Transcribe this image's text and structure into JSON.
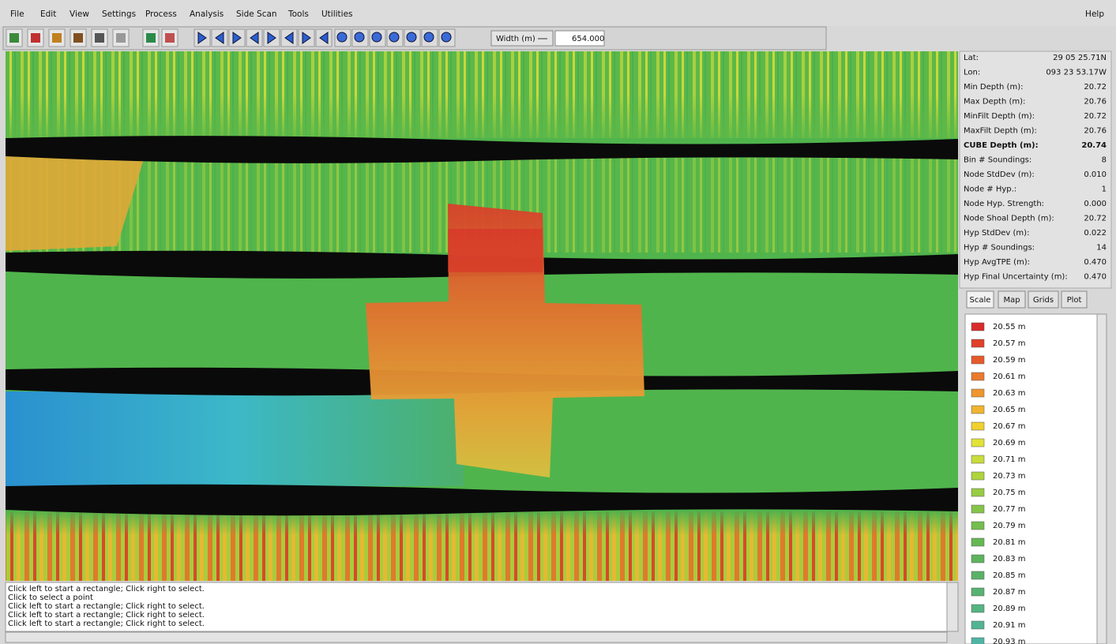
{
  "menu": [
    "File",
    "Edit",
    "View",
    "Settings",
    "Process",
    "Analysis",
    "Side Scan",
    "Tools",
    "Utilities"
  ],
  "help": "Help",
  "toolbar": {
    "width_label": "Width (m)",
    "width_value": "654.000"
  },
  "info": [
    {
      "label": "Lat:",
      "value": "29 05 25.71N"
    },
    {
      "label": "Lon:",
      "value": "093 23 53.17W"
    },
    {
      "label": "Min Depth (m):",
      "value": "20.72"
    },
    {
      "label": "Max Depth (m):",
      "value": "20.76"
    },
    {
      "label": "MinFilt Depth (m):",
      "value": "20.72"
    },
    {
      "label": "MaxFilt Depth (m):",
      "value": "20.76"
    },
    {
      "label": "CUBE Depth (m):",
      "value": "20.74"
    },
    {
      "label": "Bin # Soundings:",
      "value": "8"
    },
    {
      "label": "Node StdDev (m):",
      "value": "0.010"
    },
    {
      "label": "Node # Hyp.:",
      "value": "1"
    },
    {
      "label": "Node Hyp. Strength:",
      "value": "0.000"
    },
    {
      "label": "Node Shoal Depth (m):",
      "value": "20.72"
    },
    {
      "label": "Hyp StdDev (m):",
      "value": "0.022"
    },
    {
      "label": "Hyp # Soundings:",
      "value": "14"
    },
    {
      "label": "Hyp AvgTPE (m):",
      "value": "0.470"
    },
    {
      "label": "Hyp Final Uncertainty (m):",
      "value": "0.470"
    }
  ],
  "tabs": [
    "Scale",
    "Map",
    "Grids",
    "Plot"
  ],
  "legend": [
    {
      "label": "20.55 m",
      "color": "#d92b2b"
    },
    {
      "label": "20.57 m",
      "color": "#e0402a"
    },
    {
      "label": "20.59 m",
      "color": "#e55a2a"
    },
    {
      "label": "20.61 m",
      "color": "#ea7a2d"
    },
    {
      "label": "20.63 m",
      "color": "#ee9630"
    },
    {
      "label": "20.65 m",
      "color": "#f0b430"
    },
    {
      "label": "20.67 m",
      "color": "#efd030"
    },
    {
      "label": "20.69 m",
      "color": "#e2e238"
    },
    {
      "label": "20.71 m",
      "color": "#c8dc3c"
    },
    {
      "label": "20.73 m",
      "color": "#aed43e"
    },
    {
      "label": "20.75 m",
      "color": "#98cc44"
    },
    {
      "label": "20.77 m",
      "color": "#86c44a"
    },
    {
      "label": "20.79 m",
      "color": "#74be4e"
    },
    {
      "label": "20.81 m",
      "color": "#66b854"
    },
    {
      "label": "20.83 m",
      "color": "#5eb45c"
    },
    {
      "label": "20.85 m",
      "color": "#5ab266"
    },
    {
      "label": "20.87 m",
      "color": "#58b272"
    },
    {
      "label": "20.89 m",
      "color": "#56b482"
    },
    {
      "label": "20.91 m",
      "color": "#52b492"
    },
    {
      "label": "20.93 m",
      "color": "#50b4a4"
    }
  ],
  "log": [
    "Click left to start a rectangle; Click right to select.",
    "Click to select a point",
    "Click left to start a rectangle; Click right to select.",
    "Click left to start a rectangle; Click right to select.",
    "Click left to start a rectangle; Click right to select."
  ]
}
